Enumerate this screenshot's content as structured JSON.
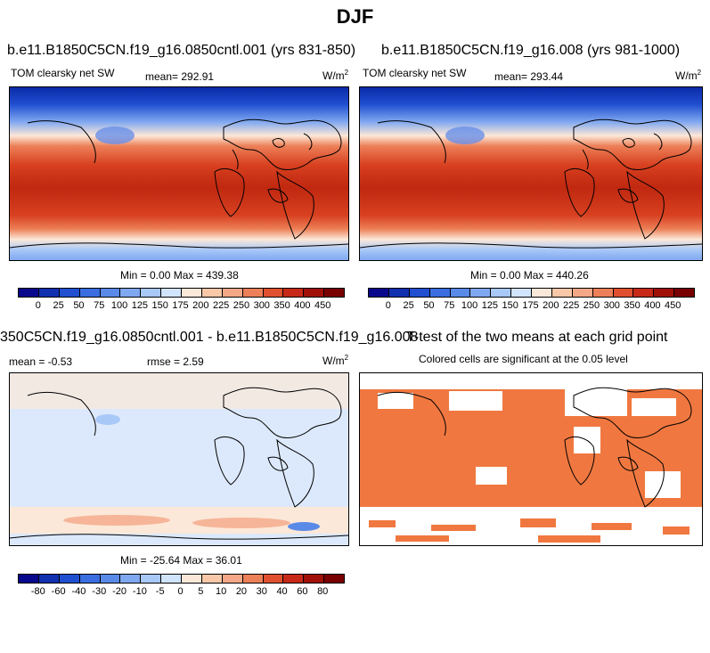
{
  "title": "DJF",
  "panels": [
    {
      "case": "b.e11.B1850C5CN.f19_g16.0850cntl.001 (yrs 831-850)",
      "variable": "TOM clearsky net SW",
      "mean": "mean= 292.91",
      "units": "W/m",
      "units_sup": "2",
      "minmax": "Min =   0.00 Max = 439.38"
    },
    {
      "case": "b.e11.B1850C5CN.f19_g16.008 (yrs 981-1000)",
      "variable": "TOM clearsky net SW",
      "mean": "mean= 293.44",
      "units": "W/m",
      "units_sup": "2",
      "minmax": "Min =   0.00 Max = 440.26"
    },
    {
      "case": "350C5CN.f19_g16.0850cntl.001 - b.e11.B1850C5CN.f19_g16.008",
      "mean": "mean =  -0.53",
      "rmse": "rmse =   2.59",
      "units": "W/m",
      "units_sup": "2",
      "minmax": "Min = -25.64 Max =  36.01"
    },
    {
      "case": "T-test of the two means at each grid point",
      "subtitle": "Colored cells are significant at the 0.05 level"
    }
  ],
  "colorbar_abs": {
    "labels": [
      "0",
      "25",
      "50",
      "75",
      "100",
      "125",
      "150",
      "175",
      "200",
      "225",
      "250",
      "300",
      "350",
      "400",
      "450"
    ],
    "colors": [
      "#08088c",
      "#1030b0",
      "#2050d0",
      "#3a6ee0",
      "#5a8ae8",
      "#80a8f0",
      "#a8c8f8",
      "#d0e4fc",
      "#fce8d8",
      "#f8c8a8",
      "#f4a888",
      "#ec8058",
      "#e05030",
      "#c82818",
      "#a01008",
      "#780000"
    ]
  },
  "colorbar_diff": {
    "labels": [
      "-80",
      "-60",
      "-40",
      "-30",
      "-20",
      "-10",
      "-5",
      "0",
      "5",
      "10",
      "20",
      "30",
      "40",
      "60",
      "80"
    ],
    "colors": [
      "#08088c",
      "#1030b0",
      "#2050d0",
      "#3a6ee0",
      "#5a8ae8",
      "#80a8f0",
      "#a8c8f8",
      "#d0e4fc",
      "#fce8d8",
      "#f8c8a8",
      "#f4a888",
      "#ec8058",
      "#e05030",
      "#c82818",
      "#a01008",
      "#780000"
    ]
  },
  "map_colors": {
    "significant": "#f07840",
    "coast": "#000000"
  }
}
